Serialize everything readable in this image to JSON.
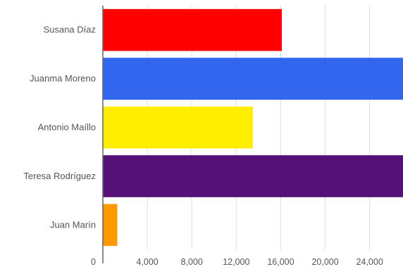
{
  "chart_data": {
    "type": "bar",
    "orientation": "horizontal",
    "title": "",
    "xlabel": "",
    "ylabel": "",
    "categories": [
      "Susana Díaz",
      "Juanma Moreno",
      "Antonio Maíllo",
      "Teresa Rodríguez",
      "Juan Marín"
    ],
    "values": [
      16100,
      27000,
      13500,
      27000,
      1300
    ],
    "colors": [
      "#ff0000",
      "#3366ee",
      "#ffee00",
      "#551177",
      "#ff9900"
    ],
    "xlim": [
      0,
      27000
    ],
    "xticks": [
      0,
      4000,
      8000,
      12000,
      16000,
      20000,
      24000
    ],
    "xtick_labels": [
      "0",
      "4,000",
      "8,000",
      "12,000",
      "16,000",
      "20,000",
      "24,000"
    ],
    "grid": true,
    "legend": "none"
  }
}
